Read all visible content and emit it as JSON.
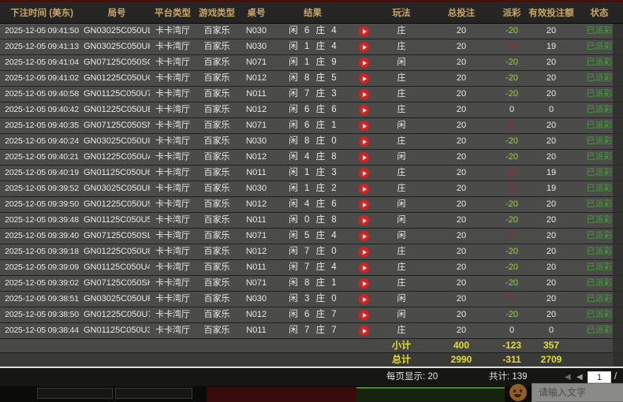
{
  "table": {
    "columns": [
      "下注时间 (美东)",
      "局号",
      "平台类型",
      "游戏类型",
      "桌号",
      "结果",
      "玩法",
      "总投注",
      "派彩",
      "有效投注额",
      "状态"
    ],
    "rows": [
      {
        "time": "2025-12-05 09:41:50",
        "round": "GN03025C050UL",
        "platform": "卡卡湾厅",
        "game": "百家乐",
        "table_no": "N030",
        "result": "闲 6 庄 4",
        "play": "庄",
        "total_bet": "20",
        "payout": "-20",
        "valid_bet": "20",
        "status": "已派彩"
      },
      {
        "time": "2025-12-05 09:41:13",
        "round": "GN03025C050UK",
        "platform": "卡卡湾厅",
        "game": "百家乐",
        "table_no": "N030",
        "result": "闲 1 庄 4",
        "play": "庄",
        "total_bet": "20",
        "payout": "19",
        "valid_bet": "19",
        "status": "已派彩"
      },
      {
        "time": "2025-12-05 09:41:04",
        "round": "GN07125C050SO",
        "platform": "卡卡湾厅",
        "game": "百家乐",
        "table_no": "N071",
        "result": "闲 1 庄 9",
        "play": "闲",
        "total_bet": "20",
        "payout": "-20",
        "valid_bet": "20",
        "status": "已派彩"
      },
      {
        "time": "2025-12-05 09:41:02",
        "round": "GN01225C050UC",
        "platform": "卡卡湾厅",
        "game": "百家乐",
        "table_no": "N012",
        "result": "闲 8 庄 5",
        "play": "庄",
        "total_bet": "20",
        "payout": "-20",
        "valid_bet": "20",
        "status": "已派彩"
      },
      {
        "time": "2025-12-05 09:40:58",
        "round": "GN01125C050U7",
        "platform": "卡卡湾厅",
        "game": "百家乐",
        "table_no": "N011",
        "result": "闲 7 庄 3",
        "play": "庄",
        "total_bet": "20",
        "payout": "-20",
        "valid_bet": "20",
        "status": "已派彩"
      },
      {
        "time": "2025-12-05 09:40:42",
        "round": "GN01225C050UB",
        "platform": "卡卡湾厅",
        "game": "百家乐",
        "table_no": "N012",
        "result": "闲 6 庄 6",
        "play": "庄",
        "total_bet": "20",
        "payout": "0",
        "valid_bet": "0",
        "status": "已派彩"
      },
      {
        "time": "2025-12-05 09:40:35",
        "round": "GN07125C050SN",
        "platform": "卡卡湾厅",
        "game": "百家乐",
        "table_no": "N071",
        "result": "闲 6 庄 1",
        "play": "闲",
        "total_bet": "20",
        "payout": "20",
        "valid_bet": "20",
        "status": "已派彩"
      },
      {
        "time": "2025-12-05 09:40:24",
        "round": "GN03025C050UI",
        "platform": "卡卡湾厅",
        "game": "百家乐",
        "table_no": "N030",
        "result": "闲 8 庄 0",
        "play": "庄",
        "total_bet": "20",
        "payout": "-20",
        "valid_bet": "20",
        "status": "已派彩"
      },
      {
        "time": "2025-12-05 09:40:21",
        "round": "GN01225C050UA",
        "platform": "卡卡湾厅",
        "game": "百家乐",
        "table_no": "N012",
        "result": "闲 4 庄 8",
        "play": "闲",
        "total_bet": "20",
        "payout": "-20",
        "valid_bet": "20",
        "status": "已派彩"
      },
      {
        "time": "2025-12-05 09:40:19",
        "round": "GN01125C050U6",
        "platform": "卡卡湾厅",
        "game": "百家乐",
        "table_no": "N011",
        "result": "闲 1 庄 3",
        "play": "庄",
        "total_bet": "20",
        "payout": "19",
        "valid_bet": "19",
        "status": "已派彩"
      },
      {
        "time": "2025-12-05 09:39:52",
        "round": "GN03025C050UH",
        "platform": "卡卡湾厅",
        "game": "百家乐",
        "table_no": "N030",
        "result": "闲 1 庄 2",
        "play": "庄",
        "total_bet": "20",
        "payout": "19",
        "valid_bet": "19",
        "status": "已派彩"
      },
      {
        "time": "2025-12-05 09:39:50",
        "round": "GN01225C050U9",
        "platform": "卡卡湾厅",
        "game": "百家乐",
        "table_no": "N012",
        "result": "闲 4 庄 6",
        "play": "闲",
        "total_bet": "20",
        "payout": "-20",
        "valid_bet": "20",
        "status": "已派彩"
      },
      {
        "time": "2025-12-05 09:39:48",
        "round": "GN01125C050U5",
        "platform": "卡卡湾厅",
        "game": "百家乐",
        "table_no": "N011",
        "result": "闲 0 庄 8",
        "play": "闲",
        "total_bet": "20",
        "payout": "-20",
        "valid_bet": "20",
        "status": "已派彩"
      },
      {
        "time": "2025-12-05 09:39:40",
        "round": "GN07125C050SL",
        "platform": "卡卡湾厅",
        "game": "百家乐",
        "table_no": "N071",
        "result": "闲 5 庄 4",
        "play": "闲",
        "total_bet": "20",
        "payout": "20",
        "valid_bet": "20",
        "status": "已派彩"
      },
      {
        "time": "2025-12-05 09:39:18",
        "round": "GN01225C050U8",
        "platform": "卡卡湾厅",
        "game": "百家乐",
        "table_no": "N012",
        "result": "闲 7 庄 0",
        "play": "庄",
        "total_bet": "20",
        "payout": "-20",
        "valid_bet": "20",
        "status": "已派彩"
      },
      {
        "time": "2025-12-05 09:39:09",
        "round": "GN01125C050U4",
        "platform": "卡卡湾厅",
        "game": "百家乐",
        "table_no": "N011",
        "result": "闲 7 庄 4",
        "play": "庄",
        "total_bet": "20",
        "payout": "-20",
        "valid_bet": "20",
        "status": "已派彩"
      },
      {
        "time": "2025-12-05 09:39:02",
        "round": "GN07125C050SK",
        "platform": "卡卡湾厅",
        "game": "百家乐",
        "table_no": "N071",
        "result": "闲 8 庄 1",
        "play": "庄",
        "total_bet": "20",
        "payout": "-20",
        "valid_bet": "20",
        "status": "已派彩"
      },
      {
        "time": "2025-12-05 09:38:51",
        "round": "GN03025C050UF",
        "platform": "卡卡湾厅",
        "game": "百家乐",
        "table_no": "N030",
        "result": "闲 3 庄 0",
        "play": "闲",
        "total_bet": "20",
        "payout": "20",
        "valid_bet": "20",
        "status": "已派彩"
      },
      {
        "time": "2025-12-05 09:38:50",
        "round": "GN01225C050U7",
        "platform": "卡卡湾厅",
        "game": "百家乐",
        "table_no": "N012",
        "result": "闲 6 庄 7",
        "play": "闲",
        "total_bet": "20",
        "payout": "-20",
        "valid_bet": "20",
        "status": "已派彩"
      },
      {
        "time": "2025-12-05 09:38:44",
        "round": "GN01125C050U3",
        "platform": "卡卡湾厅",
        "game": "百家乐",
        "table_no": "N011",
        "result": "闲 7 庄 7",
        "play": "庄",
        "total_bet": "20",
        "payout": "0",
        "valid_bet": "0",
        "status": "已派彩"
      }
    ],
    "subtotal": {
      "label": "小计",
      "total_bet": "400",
      "payout": "-123",
      "valid_bet": "357"
    },
    "grand_total": {
      "label": "总计",
      "total_bet": "2990",
      "payout": "-311",
      "valid_bet": "2709"
    }
  },
  "footer": {
    "per_page_text": "每页显示: 20",
    "total_text": "共计: 139",
    "page_value": "1",
    "page_separator": "/",
    "first_page_glyph": "◀",
    "prev_page_glyph": "◀"
  },
  "underlay": {
    "chat_placeholder": "请输入文字"
  },
  "colors": {
    "header_text": "#c8a766",
    "row_bg": "#4b4b49",
    "payout_negative": "#97d832",
    "payout_positive": "#9c2434",
    "status_paid": "#43a536",
    "summary_text": "#e3de34",
    "play_button": "#dd1f1f",
    "top_accent": "#4a0f0f"
  }
}
